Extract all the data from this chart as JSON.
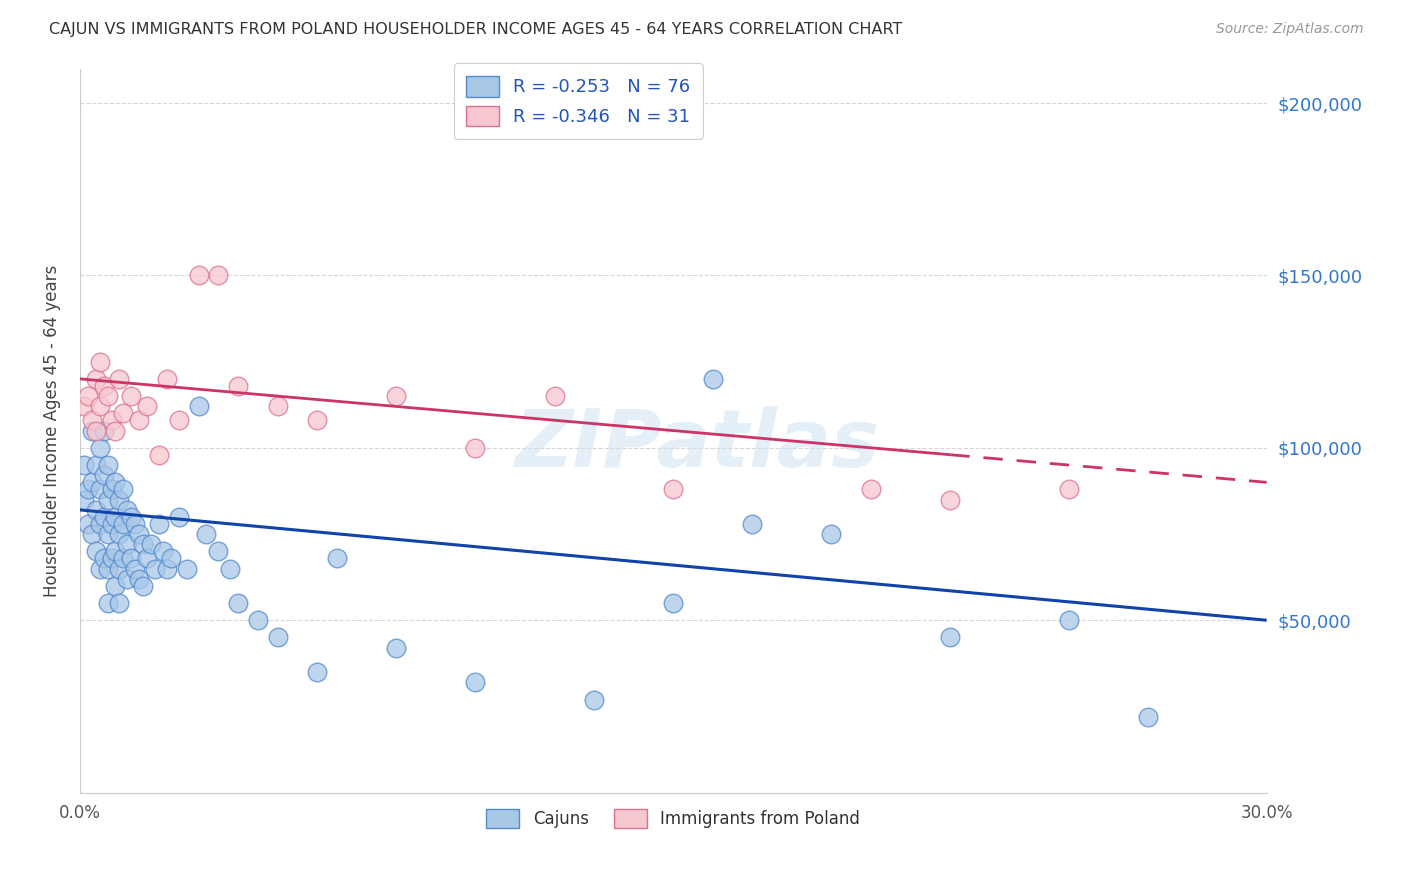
{
  "title": "CAJUN VS IMMIGRANTS FROM POLAND HOUSEHOLDER INCOME AGES 45 - 64 YEARS CORRELATION CHART",
  "source": "Source: ZipAtlas.com",
  "ylabel": "Householder Income Ages 45 - 64 years",
  "xlim": [
    0.0,
    0.3
  ],
  "ylim": [
    0,
    210000
  ],
  "yticks": [
    0,
    50000,
    100000,
    150000,
    200000
  ],
  "ytick_labels": [
    "",
    "$50,000",
    "$100,000",
    "$150,000",
    "$200,000"
  ],
  "xticks": [
    0.0,
    0.05,
    0.1,
    0.15,
    0.2,
    0.25,
    0.3
  ],
  "xtick_labels": [
    "0.0%",
    "",
    "",
    "",
    "",
    "",
    "30.0%"
  ],
  "cajun_color": "#a8c8e8",
  "cajun_edge_color": "#5588cc",
  "poland_color": "#f8c8d0",
  "poland_edge_color": "#dd7090",
  "trend_cajun_color": "#1144aa",
  "trend_poland_color": "#cc3366",
  "legend_R_cajun": "-0.253",
  "legend_N_cajun": "76",
  "legend_R_poland": "-0.346",
  "legend_N_poland": "31",
  "watermark": "ZIPatlas",
  "cajun_x": [
    0.001,
    0.001,
    0.002,
    0.002,
    0.003,
    0.003,
    0.003,
    0.004,
    0.004,
    0.004,
    0.005,
    0.005,
    0.005,
    0.005,
    0.006,
    0.006,
    0.006,
    0.006,
    0.007,
    0.007,
    0.007,
    0.007,
    0.007,
    0.008,
    0.008,
    0.008,
    0.009,
    0.009,
    0.009,
    0.009,
    0.01,
    0.01,
    0.01,
    0.01,
    0.011,
    0.011,
    0.011,
    0.012,
    0.012,
    0.012,
    0.013,
    0.013,
    0.014,
    0.014,
    0.015,
    0.015,
    0.016,
    0.016,
    0.017,
    0.018,
    0.019,
    0.02,
    0.021,
    0.022,
    0.023,
    0.025,
    0.027,
    0.03,
    0.032,
    0.035,
    0.038,
    0.04,
    0.045,
    0.05,
    0.06,
    0.065,
    0.08,
    0.1,
    0.13,
    0.15,
    0.16,
    0.17,
    0.19,
    0.22,
    0.25,
    0.27
  ],
  "cajun_y": [
    95000,
    85000,
    88000,
    78000,
    105000,
    90000,
    75000,
    95000,
    82000,
    70000,
    100000,
    88000,
    78000,
    65000,
    105000,
    92000,
    80000,
    68000,
    95000,
    85000,
    75000,
    65000,
    55000,
    88000,
    78000,
    68000,
    90000,
    80000,
    70000,
    60000,
    85000,
    75000,
    65000,
    55000,
    88000,
    78000,
    68000,
    82000,
    72000,
    62000,
    80000,
    68000,
    78000,
    65000,
    75000,
    62000,
    72000,
    60000,
    68000,
    72000,
    65000,
    78000,
    70000,
    65000,
    68000,
    80000,
    65000,
    112000,
    75000,
    70000,
    65000,
    55000,
    50000,
    45000,
    35000,
    68000,
    42000,
    32000,
    27000,
    55000,
    120000,
    78000,
    75000,
    45000,
    50000,
    22000
  ],
  "poland_x": [
    0.001,
    0.002,
    0.003,
    0.004,
    0.004,
    0.005,
    0.005,
    0.006,
    0.007,
    0.008,
    0.009,
    0.01,
    0.011,
    0.013,
    0.015,
    0.017,
    0.02,
    0.022,
    0.025,
    0.03,
    0.035,
    0.04,
    0.05,
    0.06,
    0.08,
    0.1,
    0.12,
    0.15,
    0.2,
    0.22,
    0.25
  ],
  "poland_y": [
    112000,
    115000,
    108000,
    120000,
    105000,
    125000,
    112000,
    118000,
    115000,
    108000,
    105000,
    120000,
    110000,
    115000,
    108000,
    112000,
    98000,
    120000,
    108000,
    150000,
    150000,
    118000,
    112000,
    108000,
    115000,
    100000,
    115000,
    88000,
    88000,
    85000,
    88000
  ],
  "trend_cajun_x0": 0.0,
  "trend_cajun_y0": 82000,
  "trend_cajun_x1": 0.3,
  "trend_cajun_y1": 50000,
  "trend_poland_x0": 0.0,
  "trend_poland_y0": 120000,
  "trend_poland_x1": 0.3,
  "trend_poland_y1": 90000,
  "trend_poland_solid_end": 0.22
}
